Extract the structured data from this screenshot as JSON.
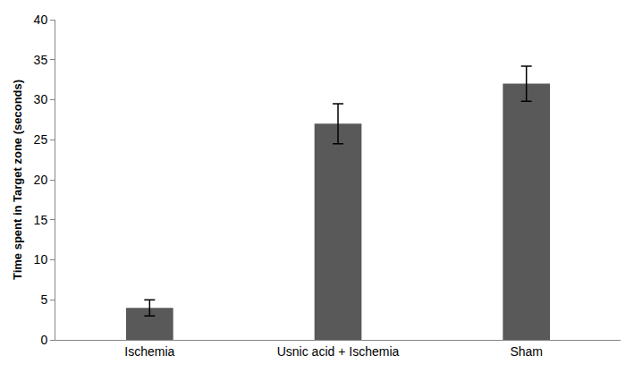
{
  "chart_data": {
    "type": "bar",
    "y_label": "Time spent in Target zone (seconds)",
    "categories": [
      "Ischemia",
      "Usnic acid + Ischemia",
      "Sham"
    ],
    "values": [
      4,
      27,
      32
    ],
    "errors": [
      1,
      2.5,
      2.2
    ],
    "color": "#595959",
    "ylim": [
      0,
      40
    ],
    "yticks": [
      0,
      5,
      10,
      15,
      20,
      25,
      30,
      35,
      40
    ],
    "grid": false
  }
}
